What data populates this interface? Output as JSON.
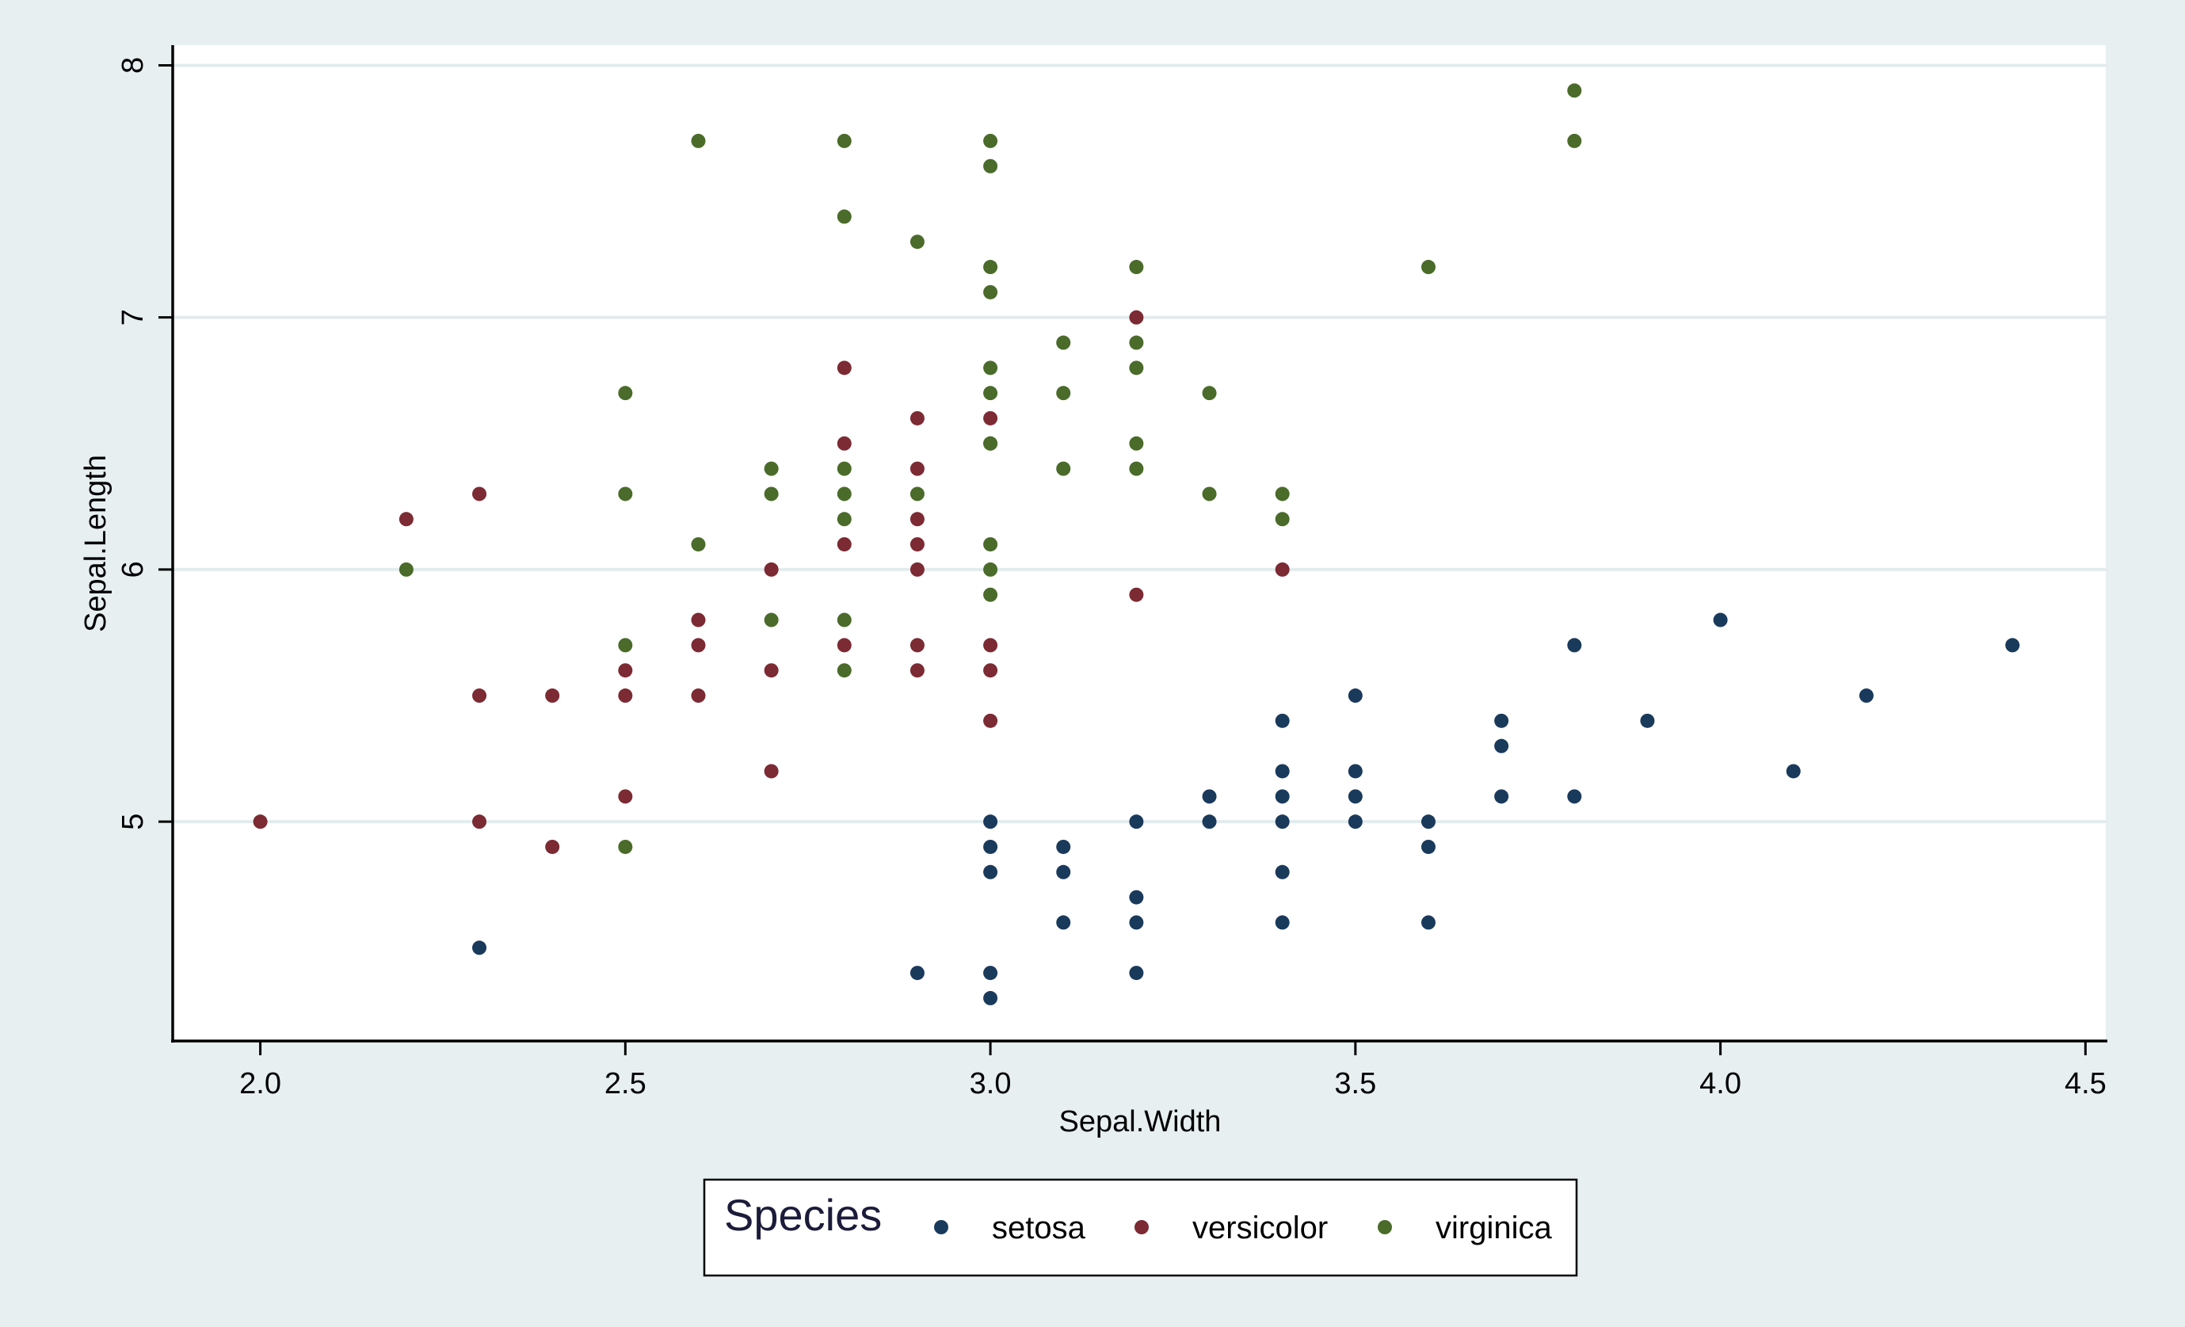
{
  "chart_data": {
    "type": "scatter",
    "title": "",
    "xlabel": "Sepal.Width",
    "ylabel": "Sepal.Length",
    "xlim": [
      1.88,
      4.53
    ],
    "ylim": [
      4.13,
      8.08
    ],
    "xticks": [
      2.0,
      2.5,
      3.0,
      3.5,
      4.0,
      4.5
    ],
    "xtick_labels": [
      "2.0",
      "2.5",
      "3.0",
      "3.5",
      "4.0",
      "4.5"
    ],
    "yticks": [
      5,
      6,
      7,
      8
    ],
    "ytick_labels": [
      "5",
      "6",
      "7",
      "8"
    ],
    "grid": "horizontal",
    "legend_placement": "bottom-center",
    "legend_title": "Species",
    "series": [
      {
        "name": "setosa",
        "color": "#1a3a5c",
        "x": [
          2.3,
          2.9,
          3.0,
          3.0,
          3.0,
          3.0,
          3.0,
          3.1,
          3.1,
          3.1,
          3.2,
          3.2,
          3.2,
          3.2,
          3.3,
          3.3,
          3.4,
          3.4,
          3.4,
          3.4,
          3.4,
          3.4,
          3.5,
          3.5,
          3.5,
          3.5,
          3.6,
          3.6,
          3.6,
          3.7,
          3.7,
          3.7,
          3.8,
          3.8,
          3.9,
          4.0,
          4.1,
          4.2,
          4.4
        ],
        "y": [
          4.5,
          4.4,
          4.3,
          4.4,
          4.8,
          4.9,
          5.0,
          4.6,
          4.8,
          4.9,
          4.4,
          4.6,
          4.7,
          5.0,
          5.0,
          5.1,
          4.6,
          4.8,
          5.0,
          5.1,
          5.2,
          5.4,
          5.0,
          5.1,
          5.2,
          5.5,
          4.6,
          4.9,
          5.0,
          5.1,
          5.3,
          5.4,
          5.1,
          5.7,
          5.4,
          5.8,
          5.2,
          5.5,
          5.7
        ]
      },
      {
        "name": "versicolor",
        "color": "#7c2a33",
        "x": [
          2.0,
          2.2,
          2.3,
          2.3,
          2.3,
          2.4,
          2.4,
          2.5,
          2.5,
          2.5,
          2.6,
          2.6,
          2.6,
          2.7,
          2.7,
          2.7,
          2.8,
          2.8,
          2.8,
          2.8,
          2.9,
          2.9,
          2.9,
          2.9,
          2.9,
          2.9,
          2.9,
          3.0,
          3.0,
          3.0,
          3.0,
          3.2,
          3.2,
          3.4
        ],
        "y": [
          5.0,
          6.2,
          5.0,
          5.5,
          6.3,
          4.9,
          5.5,
          5.1,
          5.5,
          5.6,
          5.5,
          5.7,
          5.8,
          5.2,
          5.6,
          6.0,
          5.7,
          6.1,
          6.5,
          6.8,
          5.6,
          5.7,
          6.0,
          6.1,
          6.2,
          6.4,
          6.6,
          5.4,
          5.6,
          5.7,
          6.6,
          5.9,
          7.0,
          6.0
        ]
      },
      {
        "name": "virginica",
        "color": "#4a6b2a",
        "x": [
          2.2,
          2.5,
          2.5,
          2.5,
          2.5,
          2.6,
          2.6,
          2.7,
          2.7,
          2.7,
          2.8,
          2.8,
          2.8,
          2.8,
          2.8,
          2.8,
          2.8,
          2.9,
          2.9,
          3.0,
          3.0,
          3.0,
          3.0,
          3.0,
          3.0,
          3.0,
          3.0,
          3.0,
          3.0,
          3.0,
          3.1,
          3.1,
          3.1,
          3.2,
          3.2,
          3.2,
          3.2,
          3.2,
          3.3,
          3.3,
          3.4,
          3.4,
          3.6,
          3.8,
          3.8
        ],
        "y": [
          6.0,
          4.9,
          5.7,
          6.3,
          6.7,
          6.1,
          7.7,
          5.8,
          6.3,
          6.4,
          5.6,
          5.8,
          6.2,
          6.3,
          6.4,
          7.4,
          7.7,
          6.3,
          7.3,
          5.9,
          6.0,
          6.1,
          6.5,
          6.7,
          6.8,
          7.1,
          7.2,
          7.6,
          7.7,
          6.5,
          6.4,
          6.7,
          6.9,
          6.4,
          6.5,
          6.8,
          6.9,
          7.2,
          6.3,
          6.7,
          6.2,
          6.3,
          7.2,
          7.7,
          7.9
        ]
      }
    ]
  }
}
